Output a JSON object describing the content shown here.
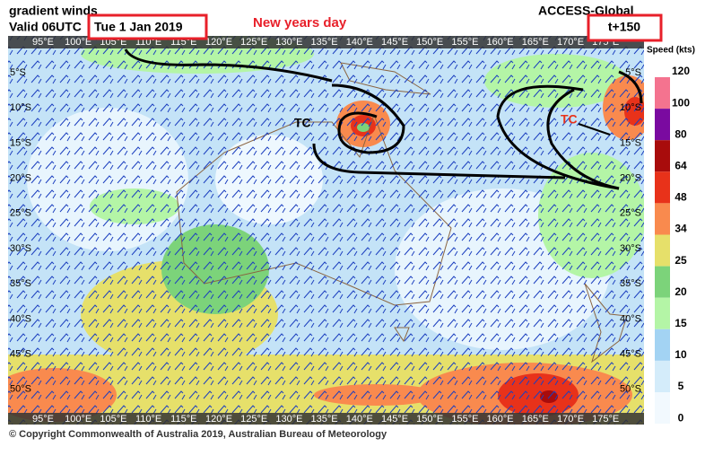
{
  "header": {
    "product": "gradient winds",
    "valid": "Valid 06UTC",
    "date": "Tue 1 Jan 2019",
    "annotation": "New years day",
    "model": "ACCESS-Global",
    "lead_time": "t+150"
  },
  "map": {
    "longitude_labels": [
      "95°E",
      "100°E",
      "105°E",
      "110°E",
      "115°E",
      "120°E",
      "125°E",
      "130°E",
      "135°E",
      "140°E",
      "145°E",
      "150°E",
      "155°E",
      "160°E",
      "165°E",
      "170°E",
      "175°E"
    ],
    "latitude_labels": [
      "5°S",
      "10°S",
      "15°S",
      "20°S",
      "25°S",
      "30°S",
      "35°S",
      "40°S",
      "45°S",
      "50°S"
    ],
    "cyclone_labels": [
      "TC",
      "TC"
    ]
  },
  "legend": {
    "title": "Speed (kts)",
    "labels": [
      120,
      100,
      80,
      64,
      48,
      34,
      25,
      20,
      15,
      10,
      5,
      0
    ],
    "colors": [
      "#f4738f",
      "#7a0aa0",
      "#a80c0c",
      "#e8321a",
      "#f98a4e",
      "#e6e06a",
      "#7cd37a",
      "#b4f5a6",
      "#a3d3f3",
      "#d4ecfa",
      "#f2f9fe"
    ]
  },
  "footer": {
    "copyright": "© Copyright Commonwealth of Australia 2019, Australian Bureau of Meteorology"
  }
}
